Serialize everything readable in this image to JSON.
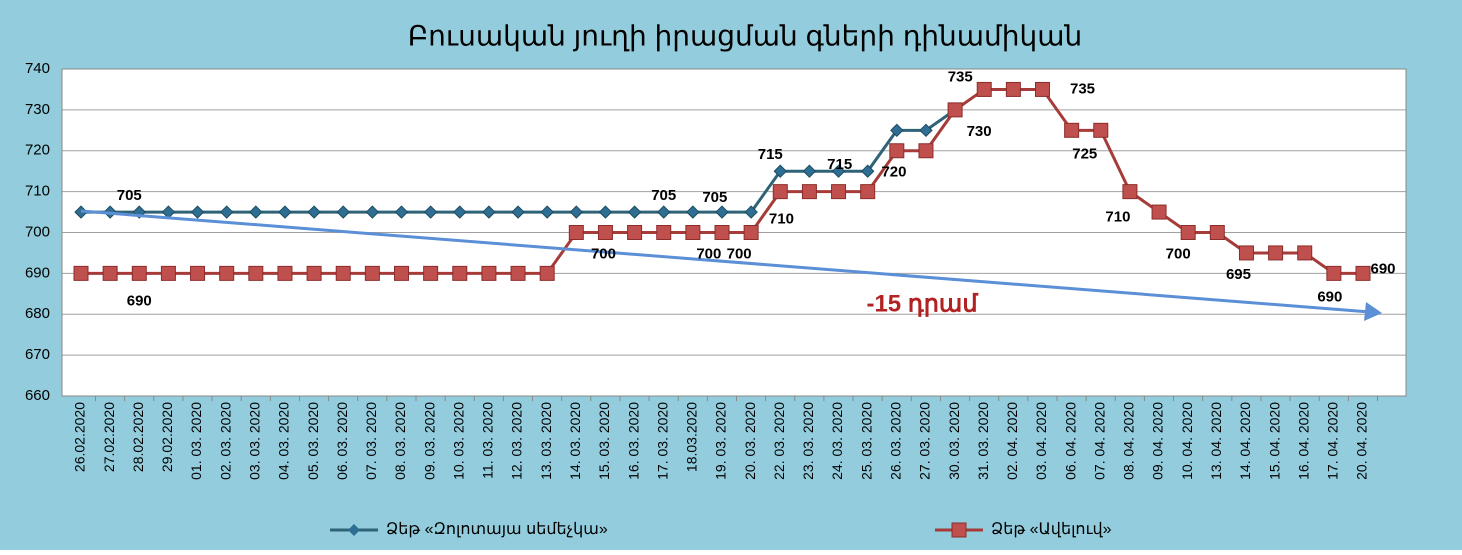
{
  "chart_data": {
    "type": "line",
    "title": "Բուսական յուղի իրացման գների դինամիկան",
    "annotation": "-15 դրամ",
    "categories": [
      "26.02.2020",
      "27.02.2020",
      "28.02.2020",
      "29.02.2020",
      "01. 03. 2020",
      "02. 03. 2020",
      "03. 03. 2020",
      "04. 03. 2020",
      "05. 03. 2020",
      "06. 03. 2020",
      "07. 03. 2020",
      "08. 03. 2020",
      "09. 03. 2020",
      "10. 03. 2020",
      "11. 03. 2020",
      "12. 03. 2020",
      "13. 03. 2020",
      "14. 03. 2020",
      "15. 03. 2020",
      "16. 03. 2020",
      "17. 03. 2020",
      "18.03.2020",
      "19. 03. 2020",
      "20. 03. 2020",
      "22. 03. 2020",
      "23. 03. 2020",
      "24. 03. 2020",
      "25. 03. 2020",
      "26. 03. 2020",
      "27. 03. 2020",
      "30. 03. 2020",
      "31. 03. 2020",
      "02. 04. 2020",
      "03. 04. 2020",
      "06. 04. 2020",
      "07. 04. 2020",
      "08. 04. 2020",
      "09. 04. 2020",
      "10. 04. 2020",
      "13. 04. 2020",
      "14. 04. 2020",
      "15. 04. 2020",
      "16. 04. 2020",
      "17. 04. 2020",
      "20. 04. 2020"
    ],
    "series": [
      {
        "name": "Ձեթ «Զոլոտայա սեմեչկա»",
        "color": "#2e6378",
        "marker": "diamond",
        "values": [
          705,
          705,
          705,
          705,
          705,
          705,
          705,
          705,
          705,
          705,
          705,
          705,
          705,
          705,
          705,
          705,
          705,
          705,
          705,
          705,
          705,
          705,
          705,
          705,
          715,
          715,
          715,
          715,
          725,
          725,
          730,
          null,
          null,
          null,
          null,
          null,
          null,
          null,
          null,
          null,
          null,
          null,
          null,
          null,
          null
        ]
      },
      {
        "name": "Ձեթ «Ավելուվ»",
        "color": "#a63c3a",
        "marker": "square",
        "values": [
          690,
          690,
          690,
          690,
          690,
          690,
          690,
          690,
          690,
          690,
          690,
          690,
          690,
          690,
          690,
          690,
          690,
          700,
          700,
          700,
          700,
          700,
          700,
          700,
          710,
          710,
          710,
          710,
          720,
          720,
          730,
          735,
          735,
          735,
          725,
          725,
          710,
          705,
          700,
          700,
          695,
          695,
          695,
          690,
          690
        ]
      }
    ],
    "ylim": [
      660,
      740
    ],
    "yticks": [
      660,
      670,
      680,
      690,
      700,
      710,
      720,
      730,
      740
    ],
    "grid": true
  }
}
